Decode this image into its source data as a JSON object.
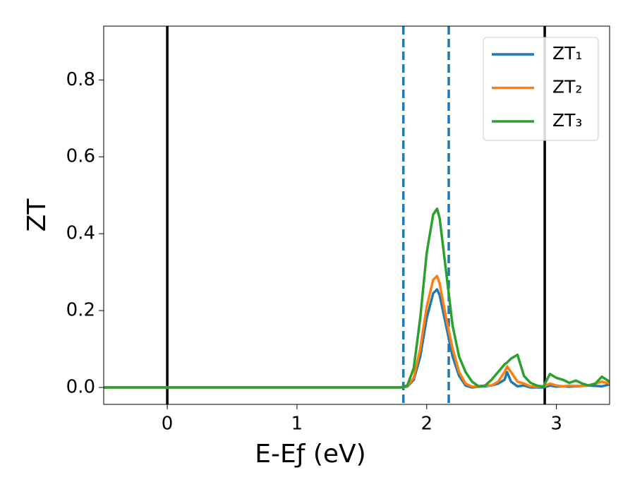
{
  "chart_data": {
    "type": "line",
    "xlabel": "E-Eƒ (eV)",
    "ylabel": "ZT",
    "xlim": [
      -0.49,
      3.41
    ],
    "ylim": [
      -0.044,
      0.94
    ],
    "xticks": [
      0,
      1,
      2,
      3
    ],
    "yticks": [
      {
        "value": 0,
        "label": "0.0"
      },
      0.2,
      0.4,
      0.6,
      0.8
    ],
    "legend": "upper right",
    "vlines": [
      {
        "x": 0,
        "color": "#000000",
        "style": "solid"
      },
      {
        "x": 2.91,
        "color": "#000000",
        "style": "solid"
      },
      {
        "x": 1.82,
        "color": "#1f77b4",
        "style": "dashed"
      },
      {
        "x": 2.17,
        "color": "#1f77b4",
        "style": "dashed"
      }
    ],
    "x": [
      -0.49,
      1.8,
      1.85,
      1.9,
      1.95,
      2.0,
      2.05,
      2.08,
      2.1,
      2.15,
      2.2,
      2.25,
      2.3,
      2.35,
      2.4,
      2.45,
      2.5,
      2.55,
      2.6,
      2.62,
      2.65,
      2.7,
      2.75,
      2.8,
      2.85,
      2.9,
      2.95,
      3.0,
      3.05,
      3.1,
      3.15,
      3.2,
      3.25,
      3.3,
      3.35,
      3.41
    ],
    "series": [
      {
        "name": "ZT₁",
        "color": "#1f77b4",
        "values": [
          0,
          0,
          0.002,
          0.02,
          0.08,
          0.18,
          0.245,
          0.255,
          0.24,
          0.16,
          0.08,
          0.03,
          0.005,
          0,
          0.002,
          0.003,
          0.005,
          0.01,
          0.02,
          0.04,
          0.015,
          0.003,
          0.005,
          0,
          0,
          0,
          0.005,
          0.002,
          0.003,
          0.002,
          0.003,
          0.004,
          0.005,
          0.004,
          0.003,
          0.008
        ]
      },
      {
        "name": "ZT₂",
        "color": "#ff7f0e",
        "values": [
          0,
          0,
          0.003,
          0.025,
          0.1,
          0.21,
          0.28,
          0.29,
          0.27,
          0.18,
          0.1,
          0.04,
          0.01,
          0.002,
          0.003,
          0.005,
          0.005,
          0.015,
          0.04,
          0.055,
          0.04,
          0.015,
          0.01,
          0.003,
          0.002,
          0.003,
          0.01,
          0.005,
          0.003,
          0.005,
          0.004,
          0.004,
          0.006,
          0.01,
          0.015,
          0.01
        ]
      },
      {
        "name": "ZT₃",
        "color": "#2ca02c",
        "values": [
          0,
          0,
          0.005,
          0.05,
          0.18,
          0.35,
          0.45,
          0.465,
          0.44,
          0.3,
          0.16,
          0.08,
          0.04,
          0.015,
          0.003,
          0.005,
          0.02,
          0.04,
          0.06,
          0.065,
          0.075,
          0.085,
          0.03,
          0.012,
          0.005,
          0.002,
          0.035,
          0.025,
          0.02,
          0.012,
          0.018,
          0.01,
          0.005,
          0.01,
          0.028,
          0.015
        ]
      }
    ]
  }
}
